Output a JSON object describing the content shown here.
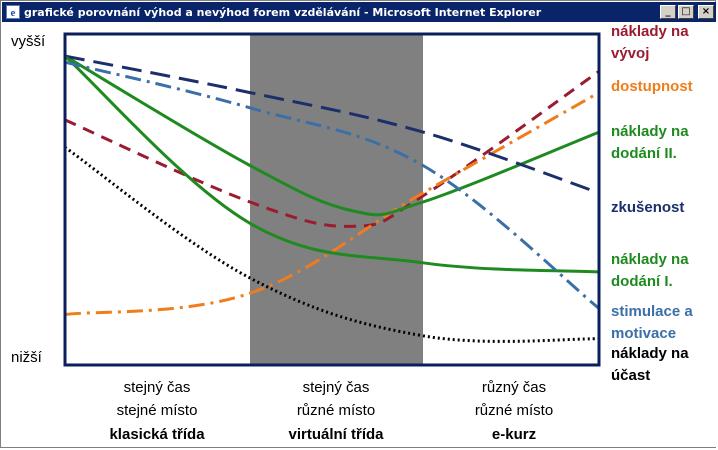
{
  "window": {
    "title": "grafické porovnání výhod a nevýhod forem vzdělávání - Microsoft Internet Explorer",
    "minimize_label": "_",
    "maximize_label": "□",
    "close_label": "×"
  },
  "chart_data": {
    "type": "line",
    "y_axis": {
      "top_label": "vyšší",
      "bottom_label": "nižší"
    },
    "x_columns": [
      {
        "line1": "stejný čas",
        "line2": "stejné místo",
        "line3": "klasická třída"
      },
      {
        "line1": "stejný čas",
        "line2": "různé místo",
        "line3": "virtuální třída"
      },
      {
        "line1": "různý čas",
        "line2": "různé místo",
        "line3": "e-kurz"
      }
    ],
    "highlighted_column": 1,
    "x_positions": [
      0,
      1,
      2,
      3
    ],
    "y_range": [
      0,
      100
    ],
    "series": [
      {
        "name": "náklady na vývoj",
        "label_line1": "náklady na",
        "label_line2": "vývoj",
        "color": "#9b1b30",
        "style": "dashed",
        "x": [
          0,
          1,
          1.6,
          2,
          3
        ],
        "values": [
          77,
          50,
          42,
          52,
          93
        ]
      },
      {
        "name": "dostupnost",
        "label_line1": "dostupnost",
        "label_line2": "",
        "color": "#f07d1c",
        "style": "dashdot",
        "x": [
          0,
          1,
          2,
          3
        ],
        "values": [
          13,
          20,
          53,
          86
        ]
      },
      {
        "name": "náklady na dodání II.",
        "label_line1": "náklady na",
        "label_line2": "dodání II.",
        "color": "#1f8a1f",
        "style": "solid",
        "x": [
          0,
          1,
          1.6,
          2,
          3
        ],
        "values": [
          98,
          62,
          47,
          50,
          73
        ]
      },
      {
        "name": "zkušenost",
        "label_line1": "zkušenost",
        "label_line2": "",
        "color": "#1c2f6b",
        "style": "longdash",
        "x": [
          0,
          1,
          2,
          3
        ],
        "values": [
          98,
          86,
          73,
          53
        ]
      },
      {
        "name": "náklady na dodání I.",
        "label_line1": "náklady na",
        "label_line2": "dodání I.",
        "color": "#1f8a1f",
        "style": "solid",
        "x": [
          0,
          1,
          2,
          3
        ],
        "values": [
          98,
          43,
          30,
          27
        ]
      },
      {
        "name": "stimulace a motivace",
        "label_line1": "stimulace a",
        "label_line2": "motivace",
        "color": "#3b6fa8",
        "style": "dashdot",
        "x": [
          0,
          1,
          2,
          3
        ],
        "values": [
          96,
          81,
          62,
          15
        ]
      },
      {
        "name": "náklady na účast",
        "label_line1": "náklady na",
        "label_line2": "účast",
        "color": "#000000",
        "style": "dotted",
        "x": [
          0,
          1,
          2,
          3
        ],
        "values": [
          68,
          25,
          6,
          5
        ]
      }
    ]
  }
}
